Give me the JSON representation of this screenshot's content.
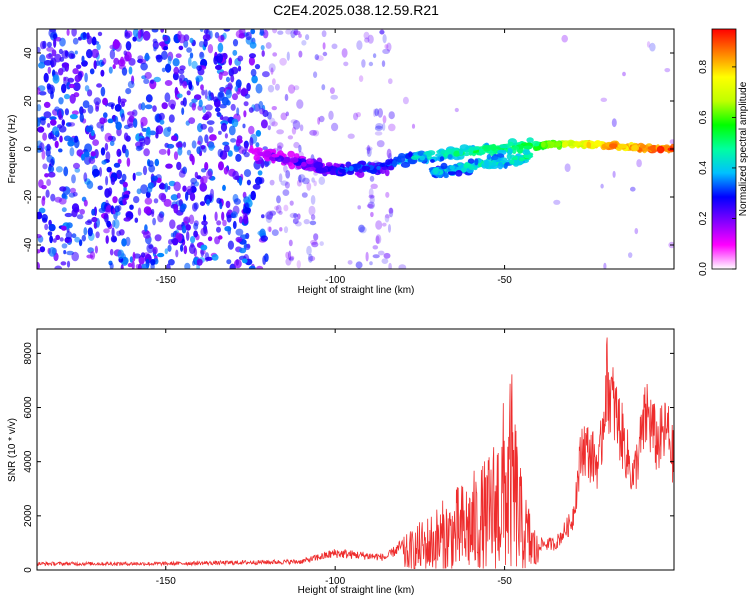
{
  "title": "C2E4.2025.038.12.59.R21",
  "chart_data": [
    {
      "type": "heatmap",
      "xlabel": "Height of straight line (km)",
      "ylabel": "Frequency (Hz)",
      "xlim": [
        -188,
        0
      ],
      "ylim": [
        -50,
        50
      ],
      "x_ticks": [
        -150,
        -100,
        -50
      ],
      "y_ticks": [
        -40,
        -20,
        0,
        20,
        40
      ],
      "colorbar": {
        "label": "Normalized spectral amplitude",
        "range": [
          0,
          0.95
        ],
        "ticks": [
          0.0,
          0.2,
          0.4,
          0.6,
          0.8
        ],
        "colormap": [
          "#ffffff",
          "#ff00ff",
          "#8000ff",
          "#0000ff",
          "#00c0ff",
          "#00ffa0",
          "#00ff00",
          "#c0ff00",
          "#ffff00",
          "#ff8000",
          "#ff0000"
        ]
      },
      "bands": [
        {
          "x": [
            -125,
            -100,
            -85,
            -75,
            -60,
            -45,
            -35,
            -25,
            -15,
            -5,
            0
          ],
          "freq": [
            -1,
            -9,
            -7,
            -3,
            -1,
            1,
            2,
            2,
            1,
            0,
            0
          ],
          "amp": [
            0.2,
            0.35,
            0.4,
            0.5,
            0.55,
            0.6,
            0.7,
            0.85,
            0.9,
            0.95,
            0.95
          ]
        },
        {
          "x": [
            -72,
            -60,
            -50,
            -42
          ],
          "freq": [
            -10,
            -7,
            -5,
            -3
          ],
          "amp": [
            0.45,
            0.5,
            0.5,
            0.55
          ]
        }
      ]
    },
    {
      "type": "line",
      "xlabel": "Height of straight line (km)",
      "ylabel": "SNR (10 * v/v)",
      "xlim": [
        -188,
        0
      ],
      "ylim": [
        0,
        8900
      ],
      "x_ticks": [
        -150,
        -100,
        -50
      ],
      "y_ticks": [
        0,
        2000,
        4000,
        6000,
        8000
      ],
      "color": "#ee2c2c",
      "envelope": {
        "x": [
          -188,
          -150,
          -110,
          -100,
          -85,
          -75,
          -65,
          -55,
          -50,
          -48,
          -45,
          -40,
          -35,
          -30,
          -27,
          -22,
          -20,
          -15,
          -12,
          -8,
          -5,
          -2,
          0
        ],
        "y": [
          300,
          300,
          400,
          800,
          600,
          1800,
          3000,
          4200,
          6500,
          7500,
          3500,
          1200,
          1200,
          2300,
          5800,
          4800,
          8800,
          6000,
          4200,
          7300,
          5800,
          6500,
          5000
        ]
      }
    }
  ]
}
